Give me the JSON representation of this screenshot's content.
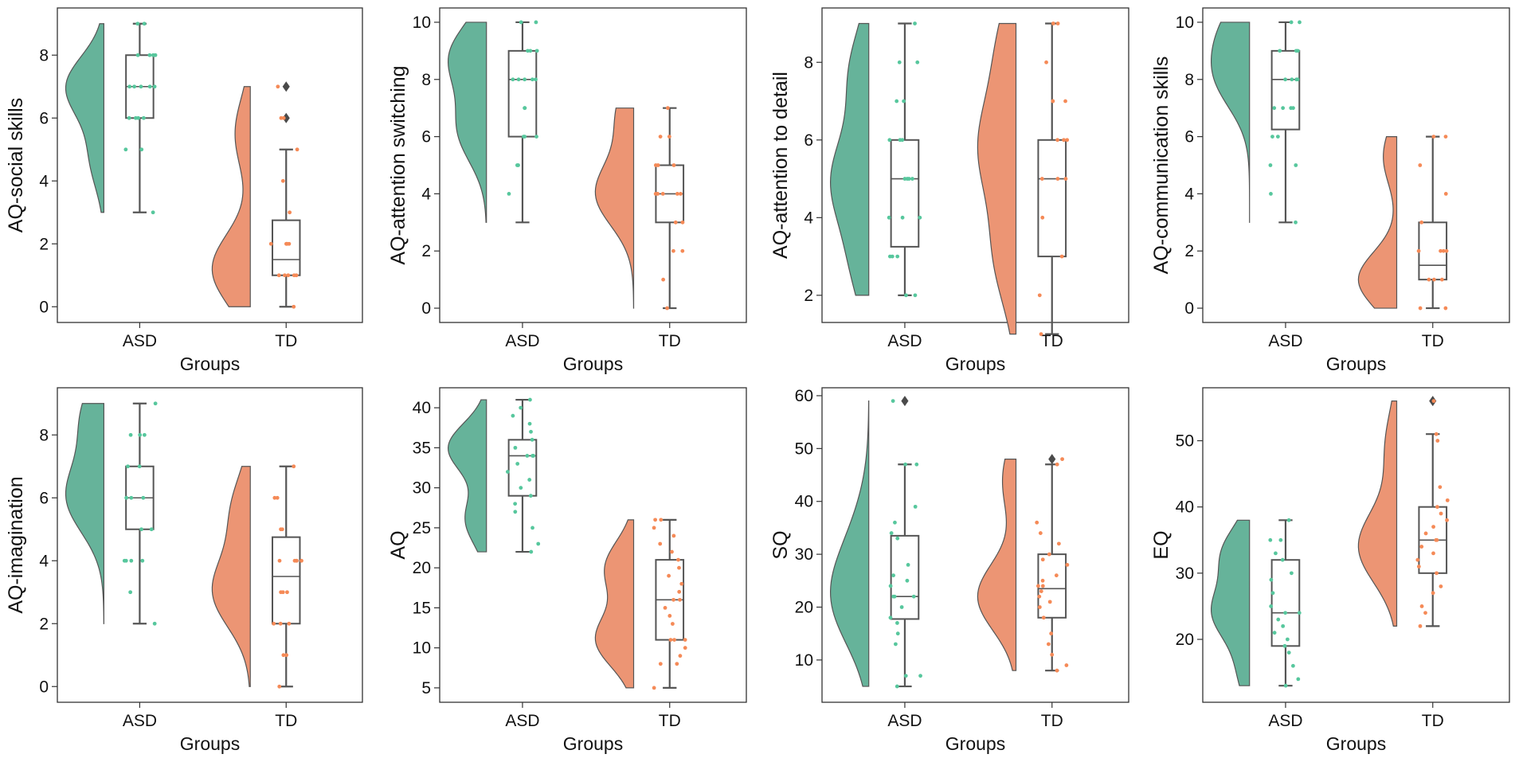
{
  "figure": {
    "description_free": true,
    "group_colors": {
      "ASD": "#66b39a",
      "TD": "#ec9574"
    },
    "point_colors": {
      "ASD": "#57c79d",
      "TD": "#f58a57"
    },
    "box_color": "#555555",
    "outlier_color": "#4a4a4a"
  },
  "chart_data": [
    {
      "type": "raincloud",
      "ylabel": "AQ-social skills",
      "xlabel": "Groups",
      "categories": [
        "ASD",
        "TD"
      ],
      "ylim": [
        -0.5,
        9.5
      ],
      "yticks": [
        0,
        2,
        4,
        6,
        8
      ],
      "groups": [
        {
          "name": "ASD",
          "violin": {
            "min": 3,
            "max": 9,
            "peaks": [
              [
                7,
                1.0
              ],
              [
                4.7,
                0.35
              ]
            ]
          },
          "box": {
            "whisker_low": 3,
            "q1": 6,
            "median": 7,
            "q3": 8,
            "whisker_high": 9,
            "outliers": []
          },
          "points": [
            3,
            5,
            5,
            6,
            6,
            6,
            6,
            7,
            7,
            7,
            7,
            7,
            8,
            8,
            8,
            8,
            9,
            9
          ]
        },
        {
          "name": "TD",
          "violin": {
            "min": 0,
            "max": 7,
            "peaks": [
              [
                1.2,
                1.0
              ],
              [
                5.5,
                0.4
              ]
            ]
          },
          "box": {
            "whisker_low": 0,
            "q1": 1,
            "median": 1.5,
            "q3": 2.75,
            "whisker_high": 5,
            "outliers": [
              6,
              7
            ]
          },
          "points": [
            0,
            1,
            1,
            1,
            1,
            1,
            2,
            2,
            2,
            2,
            2,
            3,
            4,
            5,
            6,
            6,
            7
          ]
        }
      ]
    },
    {
      "type": "raincloud",
      "ylabel": "AQ-attention switching",
      "xlabel": "Groups",
      "categories": [
        "ASD",
        "TD"
      ],
      "ylim": [
        -0.5,
        10.5
      ],
      "yticks": [
        0,
        2,
        4,
        6,
        8,
        10
      ],
      "groups": [
        {
          "name": "ASD",
          "violin": {
            "min": 3,
            "max": 10,
            "peaks": [
              [
                8.8,
                1.0
              ],
              [
                6.2,
                0.75
              ]
            ]
          },
          "box": {
            "whisker_low": 3,
            "q1": 6,
            "median": 8,
            "q3": 9,
            "whisker_high": 10,
            "outliers": []
          },
          "points": [
            4,
            5,
            5,
            6,
            6,
            6,
            7,
            7,
            8,
            8,
            8,
            8,
            8,
            9,
            9,
            9,
            10,
            10
          ]
        },
        {
          "name": "TD",
          "violin": {
            "min": 0,
            "max": 7,
            "peaks": [
              [
                4,
                1.0
              ],
              [
                6.8,
                0.45
              ]
            ]
          },
          "box": {
            "whisker_low": 0,
            "q1": 3,
            "median": 4,
            "q3": 5,
            "whisker_high": 7,
            "outliers": []
          },
          "points": [
            0,
            1,
            2,
            2,
            3,
            3,
            4,
            4,
            4,
            4,
            4,
            5,
            5,
            5,
            6,
            6,
            7
          ]
        }
      ]
    },
    {
      "type": "raincloud",
      "ylabel": "AQ-attention to detail",
      "xlabel": "Groups",
      "categories": [
        "ASD",
        "TD"
      ],
      "ylim": [
        1.3,
        9.4
      ],
      "yticks": [
        2,
        4,
        6,
        8
      ],
      "groups": [
        {
          "name": "ASD",
          "violin": {
            "min": 2,
            "max": 9,
            "peaks": [
              [
                5,
                1.0
              ],
              [
                2.8,
                0.45
              ],
              [
                7.7,
                0.55
              ]
            ]
          },
          "box": {
            "whisker_low": 2,
            "q1": 3.25,
            "median": 5,
            "q3": 6,
            "whisker_high": 9,
            "outliers": []
          },
          "points": [
            2,
            2,
            3,
            3,
            3,
            4,
            4,
            4,
            5,
            5,
            5,
            5,
            6,
            6,
            6,
            7,
            7,
            8,
            8,
            9
          ]
        },
        {
          "name": "TD",
          "violin": {
            "min": 1,
            "max": 9,
            "peaks": [
              [
                5.8,
                1.0
              ],
              [
                3,
                0.6
              ],
              [
                8.4,
                0.5
              ]
            ]
          },
          "box": {
            "whisker_low": 1,
            "q1": 3,
            "median": 5,
            "q3": 6,
            "whisker_high": 9,
            "outliers": []
          },
          "points": [
            1,
            2,
            3,
            4,
            5,
            5,
            5,
            6,
            6,
            6,
            7,
            7,
            7,
            8,
            9,
            9
          ]
        }
      ]
    },
    {
      "type": "raincloud",
      "ylabel": "AQ-communication skills",
      "xlabel": "Groups",
      "categories": [
        "ASD",
        "TD"
      ],
      "ylim": [
        -0.5,
        10.5
      ],
      "yticks": [
        0,
        2,
        4,
        6,
        8,
        10
      ],
      "groups": [
        {
          "name": "ASD",
          "violin": {
            "min": 3,
            "max": 10,
            "peaks": [
              [
                8,
                1.0
              ],
              [
                9.8,
                0.8
              ]
            ]
          },
          "box": {
            "whisker_low": 3,
            "q1": 6.25,
            "median": 8,
            "q3": 9,
            "whisker_high": 10,
            "outliers": []
          },
          "points": [
            3,
            4,
            5,
            5,
            6,
            6,
            7,
            7,
            7,
            7,
            8,
            8,
            8,
            8,
            9,
            9,
            9,
            10,
            10
          ]
        },
        {
          "name": "TD",
          "violin": {
            "min": 0,
            "max": 6,
            "peaks": [
              [
                1,
                1.0
              ],
              [
                5.3,
                0.35
              ]
            ]
          },
          "box": {
            "whisker_low": 0,
            "q1": 1,
            "median": 1.5,
            "q3": 3,
            "whisker_high": 6,
            "outliers": []
          },
          "points": [
            0,
            0,
            1,
            1,
            1,
            2,
            2,
            2,
            2,
            3,
            4,
            5,
            6,
            6
          ]
        }
      ]
    },
    {
      "type": "raincloud",
      "ylabel": "AQ-imagination",
      "xlabel": "Groups",
      "categories": [
        "ASD",
        "TD"
      ],
      "ylim": [
        -0.5,
        9.5
      ],
      "yticks": [
        0,
        2,
        4,
        6,
        8
      ],
      "groups": [
        {
          "name": "ASD",
          "violin": {
            "min": 2,
            "max": 9,
            "peaks": [
              [
                6,
                1.0
              ],
              [
                8.6,
                0.6
              ]
            ]
          },
          "box": {
            "whisker_low": 2,
            "q1": 5,
            "median": 6,
            "q3": 7,
            "whisker_high": 9,
            "outliers": []
          },
          "points": [
            2,
            3,
            4,
            4,
            4,
            4,
            5,
            5,
            6,
            6,
            6,
            7,
            7,
            8,
            8,
            8,
            9
          ]
        },
        {
          "name": "TD",
          "violin": {
            "min": 0,
            "max": 7,
            "peaks": [
              [
                3,
                1.0
              ],
              [
                5.6,
                0.5
              ]
            ]
          },
          "box": {
            "whisker_low": 0,
            "q1": 2,
            "median": 3.5,
            "q3": 4.75,
            "whisker_high": 7,
            "outliers": []
          },
          "points": [
            0,
            1,
            1,
            2,
            2,
            2,
            3,
            3,
            3,
            4,
            4,
            4,
            4,
            4,
            5,
            5,
            6,
            6,
            7
          ]
        }
      ]
    },
    {
      "type": "raincloud",
      "ylabel": "AQ",
      "xlabel": "Groups",
      "categories": [
        "ASD",
        "TD"
      ],
      "ylim": [
        3.2,
        42.5
      ],
      "yticks": [
        5,
        10,
        15,
        20,
        25,
        30,
        35,
        40
      ],
      "groups": [
        {
          "name": "ASD",
          "violin": {
            "min": 22,
            "max": 41,
            "peaks": [
              [
                35,
                1.0
              ],
              [
                26,
                0.55
              ]
            ]
          },
          "box": {
            "whisker_low": 22,
            "q1": 29,
            "median": 34,
            "q3": 36,
            "whisker_high": 41,
            "outliers": []
          },
          "points": [
            22,
            23,
            25,
            27,
            28,
            29,
            30,
            31,
            32,
            33,
            34,
            34,
            34,
            35,
            36,
            37,
            38,
            39,
            40,
            41
          ]
        },
        {
          "name": "TD",
          "violin": {
            "min": 5,
            "max": 26,
            "peaks": [
              [
                11,
                1.0
              ],
              [
                20,
                0.75
              ]
            ]
          },
          "box": {
            "whisker_low": 5,
            "q1": 11,
            "median": 16,
            "q3": 21,
            "whisker_high": 26,
            "outliers": []
          },
          "points": [
            5,
            8,
            8,
            9,
            10,
            11,
            11,
            11,
            13,
            14,
            15,
            16,
            16,
            17,
            18,
            19,
            20,
            21,
            22,
            23,
            24,
            25,
            26,
            26
          ]
        }
      ]
    },
    {
      "type": "raincloud",
      "ylabel": "SQ",
      "xlabel": "Groups",
      "categories": [
        "ASD",
        "TD"
      ],
      "ylim": [
        2,
        61.5
      ],
      "yticks": [
        10,
        20,
        30,
        40,
        50,
        60
      ],
      "groups": [
        {
          "name": "ASD",
          "violin": {
            "min": 5,
            "max": 59,
            "peaks": [
              [
                21,
                1.0
              ],
              [
                33,
                0.35
              ]
            ]
          },
          "box": {
            "whisker_low": 5,
            "q1": 17.75,
            "median": 22,
            "q3": 33.5,
            "whisker_high": 47,
            "outliers": [
              59
            ]
          },
          "points": [
            5,
            7,
            7,
            13,
            15,
            17,
            18,
            20,
            22,
            22,
            22,
            24,
            25,
            26,
            28,
            33,
            34,
            36,
            39,
            47,
            47,
            59
          ]
        },
        {
          "name": "TD",
          "violin": {
            "min": 8,
            "max": 48,
            "peaks": [
              [
                22,
                1.0
              ],
              [
                44,
                0.35
              ]
            ]
          },
          "box": {
            "whisker_low": 8,
            "q1": 18,
            "median": 23.5,
            "q3": 30,
            "whisker_high": 47,
            "outliers": [
              48
            ]
          },
          "points": [
            8,
            9,
            11,
            13,
            15,
            18,
            20,
            21,
            22,
            23,
            24,
            24,
            25,
            26,
            28,
            29,
            30,
            32,
            34,
            36,
            47,
            48
          ]
        }
      ]
    },
    {
      "type": "raincloud",
      "ylabel": "EQ",
      "xlabel": "Groups",
      "categories": [
        "ASD",
        "TD"
      ],
      "ylim": [
        10.5,
        58
      ],
      "yticks": [
        20,
        30,
        40,
        50
      ],
      "groups": [
        {
          "name": "ASD",
          "violin": {
            "min": 13,
            "max": 38,
            "peaks": [
              [
                24,
                1.0
              ],
              [
                33,
                0.75
              ],
              [
                15,
                0.3
              ]
            ]
          },
          "box": {
            "whisker_low": 13,
            "q1": 19,
            "median": 24,
            "q3": 32,
            "whisker_high": 38,
            "outliers": []
          },
          "points": [
            13,
            14,
            16,
            18,
            19,
            20,
            21,
            22,
            23,
            24,
            24,
            25,
            27,
            29,
            30,
            32,
            33,
            35,
            35,
            38
          ]
        },
        {
          "name": "TD",
          "violin": {
            "min": 22,
            "max": 56,
            "peaks": [
              [
                34,
                1.0
              ],
              [
                49,
                0.3
              ]
            ]
          },
          "box": {
            "whisker_low": 22,
            "q1": 30,
            "median": 35,
            "q3": 40,
            "whisker_high": 51,
            "outliers": [
              56
            ]
          },
          "points": [
            22,
            24,
            25,
            27,
            28,
            30,
            31,
            32,
            33,
            34,
            35,
            35,
            36,
            37,
            38,
            39,
            40,
            41,
            43,
            50,
            51,
            56
          ]
        }
      ]
    }
  ]
}
